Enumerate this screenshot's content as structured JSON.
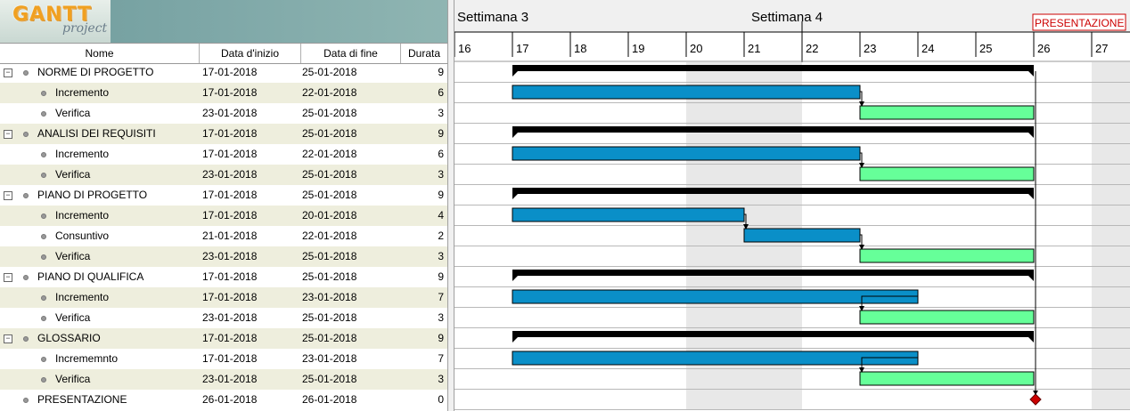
{
  "app": {
    "logo_main": "GANTT",
    "logo_sub": "project"
  },
  "columns": {
    "name": "Nome",
    "start": "Data d'inizio",
    "end": "Data di fine",
    "duration": "Durata"
  },
  "rows": [
    {
      "name": "NORME DI PROGETTO",
      "start": "17-01-2018",
      "end": "25-01-2018",
      "duration": "9",
      "level": 0,
      "kind": "summary"
    },
    {
      "name": "Incremento",
      "start": "17-01-2018",
      "end": "22-01-2018",
      "duration": "6",
      "level": 1,
      "kind": "inc"
    },
    {
      "name": "Verifica",
      "start": "23-01-2018",
      "end": "25-01-2018",
      "duration": "3",
      "level": 1,
      "kind": "ver"
    },
    {
      "name": "ANALISI DEI REQUISITI",
      "start": "17-01-2018",
      "end": "25-01-2018",
      "duration": "9",
      "level": 0,
      "kind": "summary"
    },
    {
      "name": "Incremento",
      "start": "17-01-2018",
      "end": "22-01-2018",
      "duration": "6",
      "level": 1,
      "kind": "inc"
    },
    {
      "name": "Verifica",
      "start": "23-01-2018",
      "end": "25-01-2018",
      "duration": "3",
      "level": 1,
      "kind": "ver"
    },
    {
      "name": "PIANO DI PROGETTO",
      "start": "17-01-2018",
      "end": "25-01-2018",
      "duration": "9",
      "level": 0,
      "kind": "summary"
    },
    {
      "name": "Incremento",
      "start": "17-01-2018",
      "end": "20-01-2018",
      "duration": "4",
      "level": 1,
      "kind": "inc"
    },
    {
      "name": "Consuntivo",
      "start": "21-01-2018",
      "end": "22-01-2018",
      "duration": "2",
      "level": 1,
      "kind": "inc"
    },
    {
      "name": "Verifica",
      "start": "23-01-2018",
      "end": "25-01-2018",
      "duration": "3",
      "level": 1,
      "kind": "ver"
    },
    {
      "name": "PIANO DI QUALIFICA",
      "start": "17-01-2018",
      "end": "25-01-2018",
      "duration": "9",
      "level": 0,
      "kind": "summary"
    },
    {
      "name": "Incremento",
      "start": "17-01-2018",
      "end": "23-01-2018",
      "duration": "7",
      "level": 1,
      "kind": "inc"
    },
    {
      "name": "Verifica",
      "start": "23-01-2018",
      "end": "25-01-2018",
      "duration": "3",
      "level": 1,
      "kind": "ver"
    },
    {
      "name": "GLOSSARIO",
      "start": "17-01-2018",
      "end": "25-01-2018",
      "duration": "9",
      "level": 0,
      "kind": "summary"
    },
    {
      "name": "Incrememnto",
      "start": "17-01-2018",
      "end": "23-01-2018",
      "duration": "7",
      "level": 1,
      "kind": "inc"
    },
    {
      "name": "Verifica",
      "start": "23-01-2018",
      "end": "25-01-2018",
      "duration": "3",
      "level": 1,
      "kind": "ver"
    },
    {
      "name": "PRESENTAZIONE",
      "start": "26-01-2018",
      "end": "26-01-2018",
      "duration": "0",
      "level": 0,
      "kind": "milestone"
    }
  ],
  "chart": {
    "weeks": [
      {
        "label": "Settimana 3"
      },
      {
        "label": "Settimana 4"
      }
    ],
    "days": [
      "16",
      "17",
      "18",
      "19",
      "20",
      "21",
      "22",
      "23",
      "24",
      "25",
      "26",
      "27"
    ],
    "milestone_label": "PRESENTAZIONE",
    "colors": {
      "summary": "#000000",
      "increment": "#0a8fc8",
      "verify": "#66ff99",
      "weekend": "#e8e8e8",
      "milestone": "#cc0000"
    }
  }
}
